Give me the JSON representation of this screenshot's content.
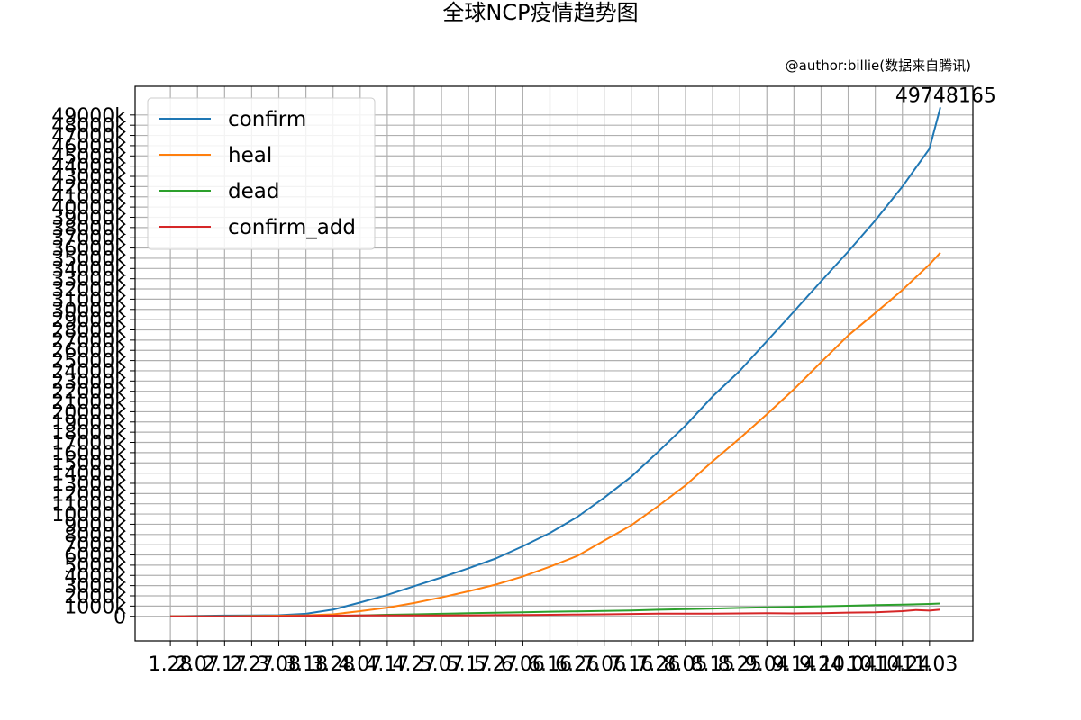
{
  "chart_data": {
    "type": "line",
    "title": "全球NCP疫情趋势图",
    "subtitle": "@author:billie(数据来自腾讯)",
    "xlabel": "",
    "ylabel": "",
    "grid": true,
    "legend_position": "top-left",
    "annotation": "49748165",
    "x_tick_labels": [
      "1.28",
      "2.07",
      "2.17",
      "2.27",
      "3.08",
      "3.18",
      "3.28",
      "4.07",
      "4.17",
      "4.27",
      "5.07",
      "5.17",
      "5.27",
      "6.06",
      "6.16",
      "6.26",
      "7.06",
      "7.16",
      "7.26",
      "8.05",
      "8.15",
      "8.25",
      "9.04",
      "9.14",
      "9.24",
      "10.04",
      "10.14",
      "10.24",
      "11.03"
    ],
    "y_tick_labels": [
      "0",
      "1000k",
      "2000k",
      "3000k",
      "4000k",
      "5000k",
      "6000k",
      "7000k",
      "8000k",
      "9000k",
      "10000k",
      "11000k",
      "12000k",
      "13000k",
      "14000k",
      "15000k",
      "16000k",
      "17000k",
      "18000k",
      "19000k",
      "20000k",
      "21000k",
      "22000k",
      "23000k",
      "24000k",
      "25000k",
      "26000k",
      "27000k",
      "28000k",
      "29000k",
      "30000k",
      "31000k",
      "32000k",
      "33000k",
      "34000k",
      "35000k",
      "36000k",
      "37000k",
      "38000k",
      "39000k",
      "40000k",
      "41000k",
      "42000k",
      "43000k",
      "44000k",
      "45000k",
      "46000k",
      "47000k",
      "48000k",
      "49000k"
    ],
    "xlim": [
      -1.3,
      29.6
    ],
    "ylim": [
      -2400000,
      51800000
    ],
    "series": [
      {
        "name": "confirm",
        "color": "#1f77b4",
        "x": [
          0,
          1,
          2,
          3,
          4,
          5,
          6,
          7,
          8,
          9,
          10,
          11,
          12,
          13,
          14,
          15,
          16,
          17,
          18,
          19,
          20,
          21,
          22,
          23,
          24,
          25,
          26,
          27,
          28,
          28.4
        ],
        "values": [
          5000,
          40000,
          75000,
          85000,
          110000,
          250000,
          650000,
          1350000,
          2100000,
          2950000,
          3800000,
          4700000,
          5650000,
          6850000,
          8150000,
          9700000,
          11600000,
          13650000,
          16100000,
          18650000,
          21500000,
          24000000,
          26900000,
          29800000,
          32750000,
          35650000,
          38700000,
          42000000,
          45700000,
          49748165
        ]
      },
      {
        "name": "heal",
        "color": "#ff7f0e",
        "x": [
          0,
          1,
          2,
          3,
          4,
          5,
          6,
          7,
          8,
          9,
          10,
          11,
          12,
          13,
          14,
          15,
          16,
          17,
          18,
          19,
          20,
          21,
          22,
          23,
          24,
          25,
          26,
          27,
          28,
          28.4
        ],
        "values": [
          0,
          2000,
          10000,
          35000,
          60000,
          95000,
          200000,
          500000,
          850000,
          1300000,
          1850000,
          2450000,
          3100000,
          3900000,
          4850000,
          5900000,
          7400000,
          8900000,
          10800000,
          12800000,
          15150000,
          17400000,
          19750000,
          22200000,
          24850000,
          27450000,
          29650000,
          31900000,
          34400000,
          35550000
        ]
      },
      {
        "name": "dead",
        "color": "#2ca02c",
        "x": [
          0,
          1,
          2,
          3,
          4,
          5,
          6,
          7,
          8,
          9,
          10,
          11,
          12,
          13,
          14,
          15,
          16,
          17,
          18,
          19,
          20,
          21,
          22,
          23,
          24,
          25,
          26,
          27,
          28,
          28.4
        ],
        "values": [
          100,
          1000,
          2000,
          2800,
          3500,
          9000,
          30000,
          80000,
          150000,
          200000,
          250000,
          300000,
          350000,
          400000,
          450000,
          490000,
          530000,
          570000,
          640000,
          700000,
          760000,
          820000,
          880000,
          930000,
          980000,
          1030000,
          1090000,
          1150000,
          1210000,
          1250000
        ]
      },
      {
        "name": "confirm_add",
        "color": "#d62728",
        "x": [
          0,
          1,
          2,
          3,
          4,
          5,
          6,
          7,
          8,
          9,
          10,
          11,
          12,
          13,
          14,
          15,
          16,
          17,
          18,
          19,
          20,
          21,
          22,
          23,
          24,
          25,
          26,
          27,
          27.5,
          28,
          28.4
        ],
        "values": [
          1500,
          3000,
          2000,
          4000,
          8000,
          40000,
          60000,
          80000,
          80000,
          85000,
          90000,
          100000,
          120000,
          130000,
          150000,
          180000,
          200000,
          230000,
          260000,
          270000,
          260000,
          280000,
          300000,
          280000,
          310000,
          360000,
          400000,
          500000,
          620000,
          560000,
          650000
        ]
      }
    ]
  }
}
